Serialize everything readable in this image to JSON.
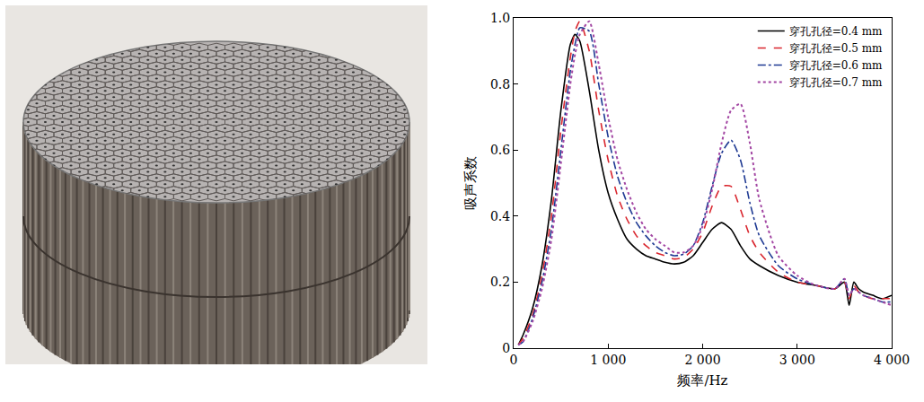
{
  "chart_data": {
    "type": "line",
    "x_label": "频率/Hz",
    "y_label": "吸声系数",
    "x": [
      50,
      100,
      200,
      300,
      400,
      500,
      600,
      650,
      700,
      800,
      900,
      1000,
      1100,
      1200,
      1300,
      1400,
      1500,
      1600,
      1700,
      1800,
      1900,
      2000,
      2100,
      2200,
      2300,
      2400,
      2500,
      2600,
      2800,
      3000,
      3200,
      3400,
      3500,
      3550,
      3600,
      3650,
      3700,
      3800,
      3900,
      4000
    ],
    "series": [
      {
        "name": "穿孔孔径=0.4 mm",
        "color": "#000000",
        "line_style": "solid",
        "values": [
          0.01,
          0.04,
          0.12,
          0.25,
          0.45,
          0.72,
          0.92,
          0.95,
          0.93,
          0.78,
          0.6,
          0.47,
          0.39,
          0.33,
          0.3,
          0.28,
          0.27,
          0.26,
          0.255,
          0.26,
          0.28,
          0.32,
          0.36,
          0.38,
          0.36,
          0.31,
          0.27,
          0.25,
          0.22,
          0.2,
          0.19,
          0.18,
          0.2,
          0.13,
          0.2,
          0.18,
          0.17,
          0.16,
          0.15,
          0.16
        ]
      },
      {
        "name": "穿孔孔径=0.5 mm",
        "color": "#d9262e",
        "line_style": "dash",
        "values": [
          0.01,
          0.03,
          0.1,
          0.22,
          0.4,
          0.66,
          0.88,
          0.96,
          0.99,
          0.9,
          0.72,
          0.57,
          0.46,
          0.39,
          0.34,
          0.31,
          0.29,
          0.28,
          0.27,
          0.275,
          0.3,
          0.35,
          0.43,
          0.49,
          0.49,
          0.42,
          0.34,
          0.29,
          0.23,
          0.2,
          0.19,
          0.18,
          0.2,
          0.15,
          0.19,
          0.17,
          0.16,
          0.15,
          0.15,
          0.15
        ]
      },
      {
        "name": "穿孔孔径=0.6 mm",
        "color": "#1f3a93",
        "line_style": "dashdot",
        "values": [
          0.01,
          0.02,
          0.09,
          0.2,
          0.36,
          0.6,
          0.84,
          0.92,
          0.97,
          0.96,
          0.8,
          0.64,
          0.52,
          0.44,
          0.38,
          0.34,
          0.31,
          0.29,
          0.28,
          0.285,
          0.31,
          0.38,
          0.49,
          0.59,
          0.63,
          0.57,
          0.44,
          0.34,
          0.25,
          0.21,
          0.19,
          0.18,
          0.21,
          0.16,
          0.18,
          0.17,
          0.16,
          0.15,
          0.14,
          0.14
        ]
      },
      {
        "name": "穿孔孔径=0.7 mm",
        "color": "#a347a3",
        "line_style": "dot",
        "values": [
          0.01,
          0.02,
          0.08,
          0.18,
          0.33,
          0.56,
          0.8,
          0.89,
          0.95,
          0.99,
          0.86,
          0.7,
          0.57,
          0.48,
          0.41,
          0.36,
          0.33,
          0.31,
          0.29,
          0.29,
          0.31,
          0.37,
          0.48,
          0.62,
          0.72,
          0.74,
          0.62,
          0.45,
          0.28,
          0.22,
          0.19,
          0.18,
          0.21,
          0.16,
          0.18,
          0.17,
          0.16,
          0.15,
          0.14,
          0.13
        ]
      }
    ],
    "xlim": [
      0,
      4000
    ],
    "xticks": [
      0,
      {
        "value": 1000,
        "label": "1 000"
      },
      {
        "value": 2000,
        "label": "2 000"
      },
      {
        "value": 3000,
        "label": "3 000"
      },
      {
        "value": 4000,
        "label": "4 000"
      }
    ],
    "ylim": [
      0,
      1.0
    ],
    "yticks": [
      0,
      0.2,
      0.4,
      0.6,
      0.8,
      {
        "value": 1.0,
        "label": "1.0"
      }
    ],
    "grid": false,
    "legend": "top right"
  }
}
